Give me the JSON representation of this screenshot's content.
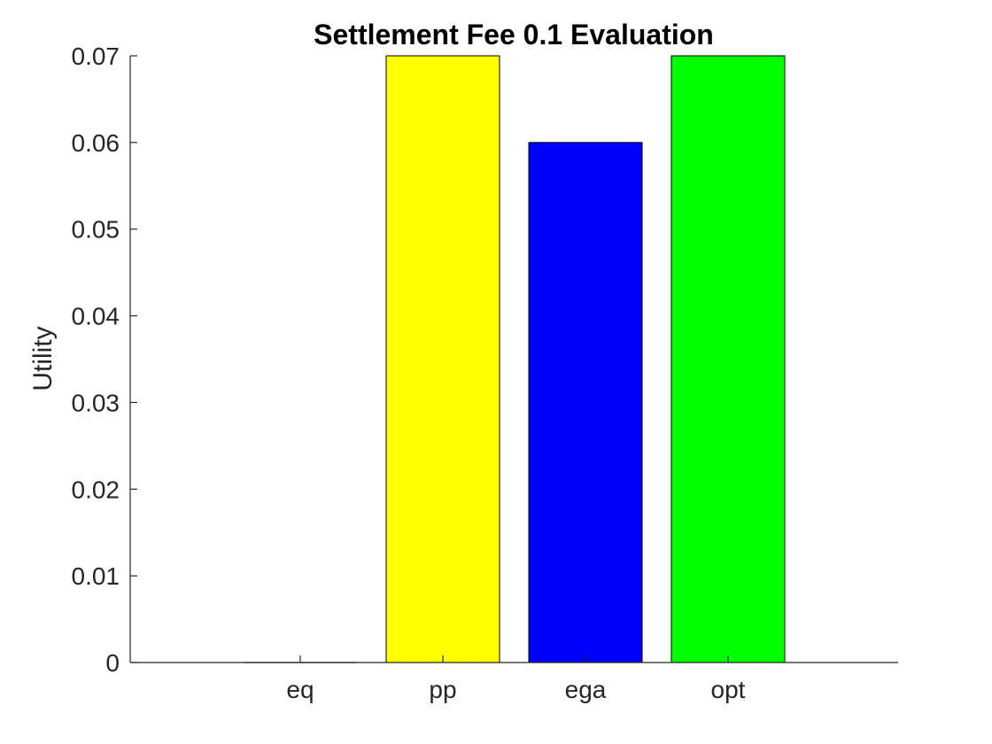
{
  "chart_data": {
    "type": "bar",
    "title": "Settlement Fee 0.1 Evaluation",
    "xlabel": "",
    "ylabel": "Utility",
    "categories": [
      "eq",
      "pp",
      "ega",
      "opt"
    ],
    "values": [
      0,
      0.07,
      0.06,
      0.07
    ],
    "colors": [
      "#000000",
      "#ffff00",
      "#0000ff",
      "#00ff00"
    ],
    "ylim": [
      0,
      0.07
    ],
    "yticks": [
      0,
      0.01,
      0.02,
      0.03,
      0.04,
      0.05,
      0.06,
      0.07
    ],
    "ytick_labels": [
      "0",
      "0.01",
      "0.02",
      "0.03",
      "0.04",
      "0.05",
      "0.06",
      "0.07"
    ],
    "grid": false,
    "legend": "none"
  }
}
